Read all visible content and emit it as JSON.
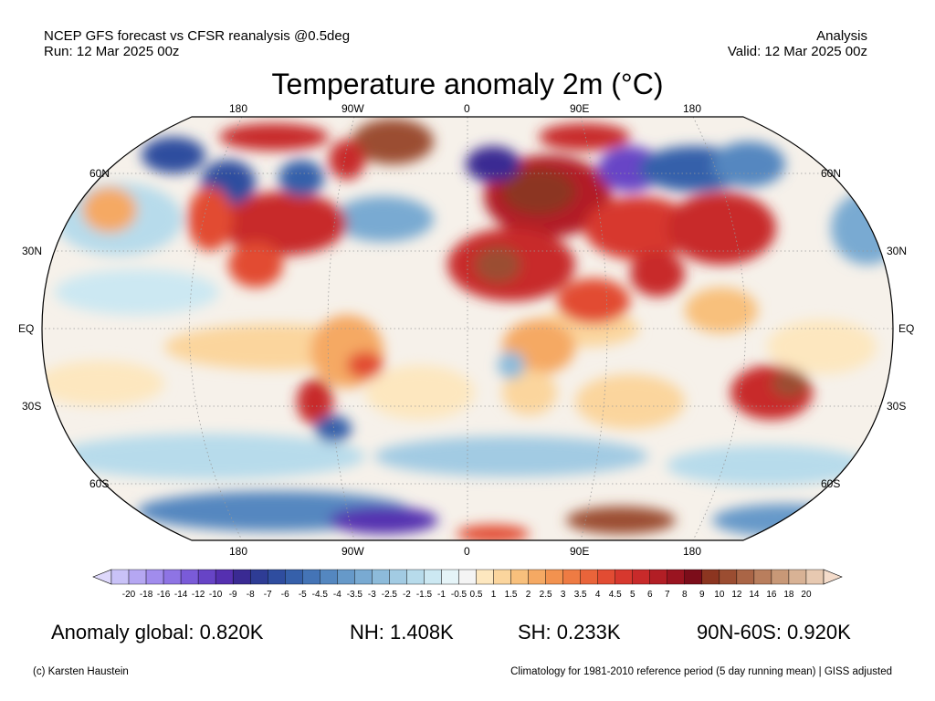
{
  "header": {
    "line1_left": "NCEP GFS forecast vs CFSR reanalysis @0.5deg",
    "line2_left": "Run: 12 Mar 2025 00z",
    "line1_right": "Analysis",
    "line2_right": "Valid: 12 Mar 2025 00z"
  },
  "title": "Temperature anomaly 2m (°C)",
  "axes": {
    "lon_labels": [
      "180",
      "90W",
      "0",
      "90E",
      "180"
    ],
    "lat_labels_left": [
      "60N",
      "30N",
      "EQ",
      "30S",
      "60S"
    ],
    "lat_labels_right": [
      "60N",
      "30N",
      "EQ",
      "30S",
      "60S"
    ]
  },
  "colorbar": {
    "labels": [
      "-20",
      "-18",
      "-16",
      "-14",
      "-12",
      "-10",
      "-9",
      "-8",
      "-7",
      "-6",
      "-5",
      "-4.5",
      "-4",
      "-3.5",
      "-3",
      "-2.5",
      "-2",
      "-1.5",
      "-1",
      "-0.5",
      "0.5",
      "1",
      "1.5",
      "2",
      "2.5",
      "3",
      "3.5",
      "4",
      "4.5",
      "5",
      "6",
      "7",
      "8",
      "9",
      "10",
      "12",
      "14",
      "16",
      "18",
      "20"
    ],
    "colors": [
      "#c9c2f7",
      "#b5a7f2",
      "#a18ced",
      "#8e74e4",
      "#7a5bd8",
      "#6744c6",
      "#5530b0",
      "#3a2a93",
      "#2e3c95",
      "#2f4d9f",
      "#3660aa",
      "#4474b6",
      "#5487c0",
      "#6699c9",
      "#79aad2",
      "#8dbbda",
      "#a2cbe3",
      "#b7dbeb",
      "#cce8f2",
      "#e5f4f8",
      "#f4f4f4",
      "#fde7bf",
      "#fbd59d",
      "#f8c07c",
      "#f5a963",
      "#f2924f",
      "#ee7b43",
      "#e9643a",
      "#e24c33",
      "#d7382e",
      "#c82a2a",
      "#b21e25",
      "#9a1420",
      "#7c0d1a",
      "#8c3520",
      "#9b4d31",
      "#aa6546",
      "#b97e5d",
      "#c89877",
      "#d8b295",
      "#e7c9b1"
    ],
    "under_color": "#ded8fb",
    "over_color": "#f4dccb"
  },
  "stats": {
    "global": "Anomaly global: 0.820K",
    "nh": "NH: 1.408K",
    "sh": "SH: 0.233K",
    "arctic": "90N-60S: 0.920K"
  },
  "footer": {
    "left": "(c) Karsten Haustein",
    "right": "Climatology for 1981-2010 reference period (5 day running mean) | GISS adjusted"
  }
}
